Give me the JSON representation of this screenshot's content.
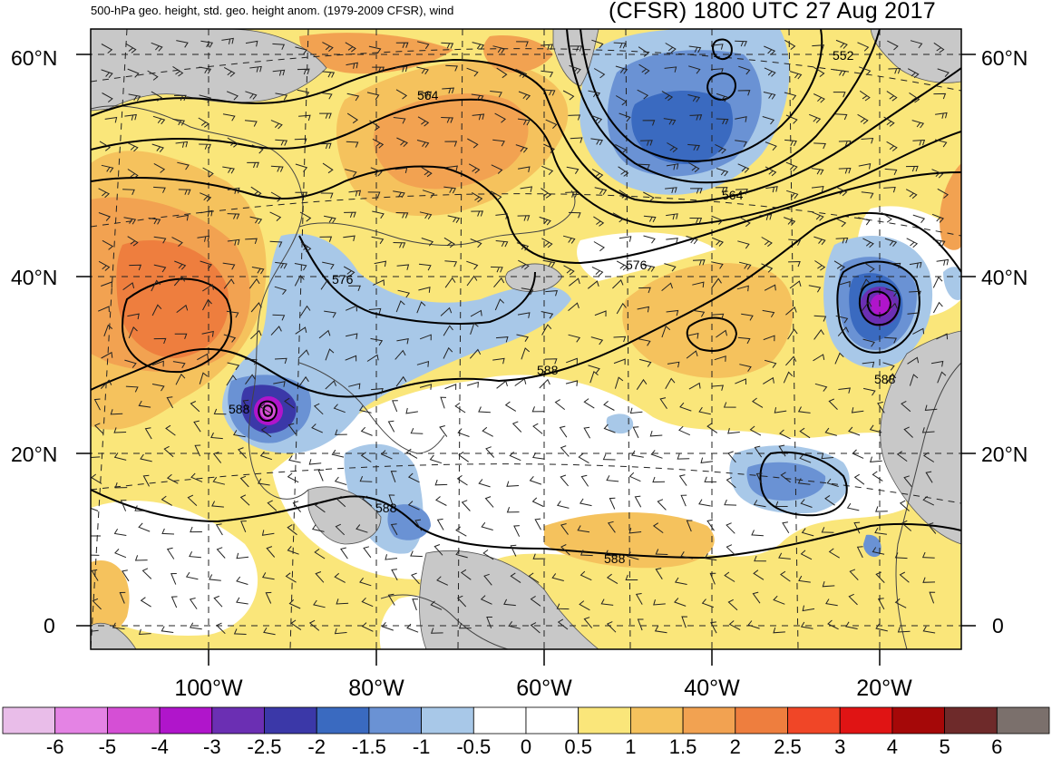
{
  "header": {
    "subtitle": "500-hPa geo. height, std. geo. height anom. (1979-2009 CFSR), wind",
    "title": "(CFSR) 1800 UTC 27 Aug 2017"
  },
  "axes": {
    "lat_labels_left": [
      "60°N",
      "40°N",
      "20°N",
      "0"
    ],
    "lat_labels_right": [
      "60°N",
      "40°N",
      "20°N",
      "0"
    ],
    "lon_labels": [
      "100°W",
      "80°W",
      "60°W",
      "40°W",
      "20°W"
    ]
  },
  "contour_labels": [
    "552",
    "564",
    "564",
    "576",
    "576",
    "588",
    "588",
    "588",
    "588",
    "588"
  ],
  "colorbar": {
    "tick_labels": [
      "-6",
      "-5",
      "-4",
      "-3",
      "-2.5",
      "-2",
      "-1.5",
      "-1",
      "-0.5",
      "0",
      "0.5",
      "1",
      "1.5",
      "2",
      "2.5",
      "3",
      "4",
      "5",
      "6"
    ],
    "colors": [
      "#e9bde9",
      "#e483e4",
      "#d54fd5",
      "#b015cb",
      "#6b2fb3",
      "#3b38a8",
      "#3a6ac0",
      "#6a92d4",
      "#a8c8e8",
      "#ffffff",
      "#ffffff",
      "#fae67a",
      "#f5c25d",
      "#f2a251",
      "#ee7e3e",
      "#f04627",
      "#e01414",
      "#a50808",
      "#6e2a2a",
      "#7b706c"
    ]
  },
  "colors": {
    "land": "#c8c8c8",
    "contour": "#000000"
  }
}
